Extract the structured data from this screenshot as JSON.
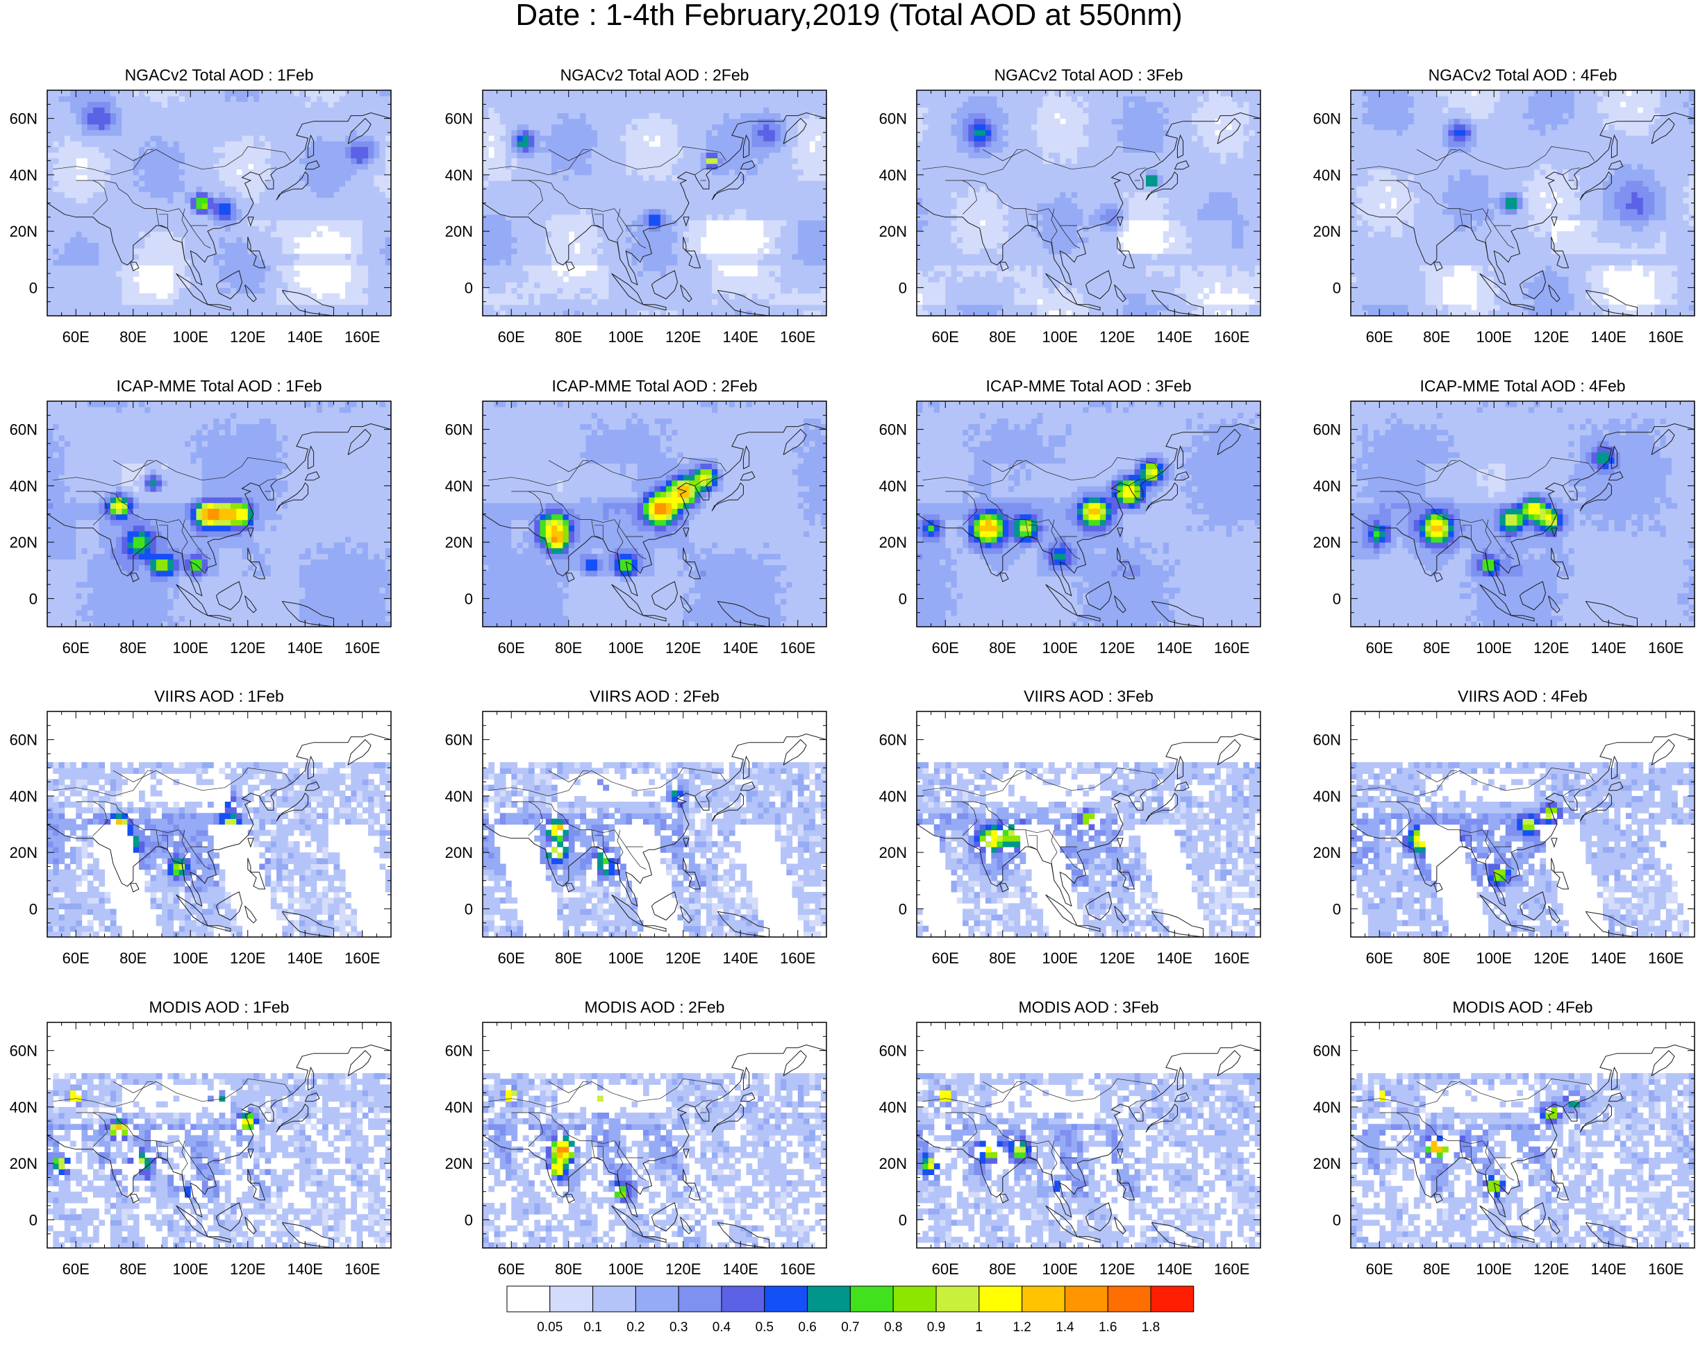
{
  "title": "Date : 1-4th February,2019 (Total AOD at 550nm)",
  "chart_data": {
    "type": "heatmap",
    "grid": {
      "rows": 4,
      "cols": 4
    },
    "lon_range": [
      50,
      170
    ],
    "lat_range": [
      -10,
      70
    ],
    "x_ticks": [
      "60E",
      "80E",
      "100E",
      "120E",
      "140E",
      "160E"
    ],
    "x_tick_values": [
      60,
      80,
      100,
      120,
      140,
      160
    ],
    "y_ticks": [
      "60N",
      "40N",
      "20N",
      "0"
    ],
    "y_tick_values": [
      60,
      40,
      20,
      0
    ],
    "panels": [
      {
        "title": "NGACv2 Total AOD : 1Feb",
        "source": "ngac",
        "day": 1
      },
      {
        "title": "NGACv2 Total AOD : 2Feb",
        "source": "ngac",
        "day": 2
      },
      {
        "title": "NGACv2 Total AOD : 3Feb",
        "source": "ngac",
        "day": 3
      },
      {
        "title": "NGACv2 Total AOD : 4Feb",
        "source": "ngac",
        "day": 4
      },
      {
        "title": "ICAP-MME Total AOD : 1Feb",
        "source": "icap",
        "day": 1
      },
      {
        "title": "ICAP-MME Total AOD : 2Feb",
        "source": "icap",
        "day": 2
      },
      {
        "title": "ICAP-MME Total AOD : 3Feb",
        "source": "icap",
        "day": 3
      },
      {
        "title": "ICAP-MME Total AOD : 4Feb",
        "source": "icap",
        "day": 4
      },
      {
        "title": "VIIRS AOD : 1Feb",
        "source": "viirs",
        "day": 1
      },
      {
        "title": "VIIRS AOD : 2Feb",
        "source": "viirs",
        "day": 2
      },
      {
        "title": "VIIRS AOD : 3Feb",
        "source": "viirs",
        "day": 3
      },
      {
        "title": "VIIRS AOD : 4Feb",
        "source": "viirs",
        "day": 4
      },
      {
        "title": "MODIS AOD : 1Feb",
        "source": "modis",
        "day": 1
      },
      {
        "title": "MODIS AOD : 2Feb",
        "source": "modis",
        "day": 2
      },
      {
        "title": "MODIS AOD : 3Feb",
        "source": "modis",
        "day": 3
      },
      {
        "title": "MODIS AOD : 4Feb",
        "source": "modis",
        "day": 4
      }
    ],
    "colorbar": {
      "levels": [
        "0.05",
        "0.1",
        "0.2",
        "0.3",
        "0.4",
        "0.5",
        "0.6",
        "0.7",
        "0.8",
        "0.9",
        "1",
        "1.2",
        "1.4",
        "1.6",
        "1.8"
      ],
      "colors": [
        "#ffffff",
        "#d4dcfb",
        "#b5c4f8",
        "#96abf5",
        "#7e90f0",
        "#5b62e6",
        "#1450f5",
        "#00968c",
        "#41e11e",
        "#8ce600",
        "#c8f03c",
        "#ffff00",
        "#ffc300",
        "#ff9600",
        "#ff6e00",
        "#ff1e00"
      ]
    },
    "hotspots": {
      "ngac": [
        [
          [
            104,
            30,
            3,
            0.8
          ],
          [
            112,
            28,
            4,
            0.5
          ],
          [
            68,
            60,
            6,
            0.35
          ],
          [
            160,
            48,
            5,
            0.35
          ]
        ],
        [
          [
            64,
            52,
            4,
            0.55
          ],
          [
            130,
            45,
            2,
            0.9
          ],
          [
            110,
            24,
            3,
            0.4
          ],
          [
            150,
            55,
            6,
            0.3
          ]
        ],
        [
          [
            72,
            55,
            5,
            0.4
          ],
          [
            132,
            38,
            2,
            0.9
          ],
          [
            118,
            25,
            5,
            0.25
          ]
        ],
        [
          [
            88,
            55,
            5,
            0.45
          ],
          [
            106,
            30,
            3,
            0.6
          ],
          [
            150,
            30,
            8,
            0.2
          ]
        ]
      ],
      "icap": [
        [
          [
            75,
            33,
            4,
            0.9
          ],
          [
            87,
            41,
            3,
            0.6
          ],
          [
            106,
            30,
            4,
            1.2
          ],
          [
            112,
            30,
            4,
            0.9
          ],
          [
            118,
            30,
            4,
            0.8
          ],
          [
            82,
            20,
            5,
            0.5
          ],
          [
            90,
            12,
            4,
            0.7
          ],
          [
            102,
            12,
            3,
            0.6
          ]
        ],
        [
          [
            75,
            25,
            5,
            1.0
          ],
          [
            76,
            20,
            3,
            0.8
          ],
          [
            112,
            32,
            5,
            1.3
          ],
          [
            120,
            38,
            5,
            1.1
          ],
          [
            128,
            43,
            4,
            0.9
          ],
          [
            100,
            12,
            4,
            0.6
          ],
          [
            88,
            12,
            3,
            0.5
          ]
        ],
        [
          [
            75,
            25,
            5,
            1.1
          ],
          [
            88,
            25,
            4,
            0.7
          ],
          [
            112,
            31,
            5,
            1.0
          ],
          [
            124,
            38,
            5,
            1.0
          ],
          [
            132,
            45,
            4,
            0.9
          ],
          [
            55,
            25,
            3,
            0.5
          ],
          [
            100,
            15,
            4,
            0.4
          ]
        ],
        [
          [
            80,
            25,
            5,
            1.0
          ],
          [
            60,
            23,
            4,
            0.5
          ],
          [
            106,
            28,
            4,
            0.8
          ],
          [
            114,
            32,
            4,
            0.9
          ],
          [
            120,
            28,
            4,
            0.8
          ],
          [
            138,
            50,
            4,
            0.5
          ],
          [
            98,
            12,
            3,
            0.6
          ]
        ]
      ],
      "viirs": [
        [
          [
            75,
            30,
            3,
            1.2
          ],
          [
            78,
            23,
            4,
            0.7
          ],
          [
            96,
            15,
            3,
            0.7
          ],
          [
            114,
            30,
            3,
            0.8
          ],
          [
            112,
            38,
            4,
            0.5
          ]
        ],
        [
          [
            76,
            28,
            3,
            1.1
          ],
          [
            76,
            20,
            3,
            0.9
          ],
          [
            92,
            16,
            4,
            0.6
          ],
          [
            90,
            42,
            3,
            0.7
          ],
          [
            118,
            40,
            3,
            0.6
          ]
        ],
        [
          [
            76,
            25,
            4,
            0.9
          ],
          [
            84,
            26,
            4,
            0.7
          ],
          [
            110,
            32,
            3,
            0.7
          ],
          [
            100,
            12,
            3,
            0.5
          ]
        ],
        [
          [
            75,
            25,
            4,
            1.0
          ],
          [
            85,
            25,
            3,
            0.8
          ],
          [
            112,
            30,
            3,
            0.8
          ],
          [
            120,
            34,
            3,
            0.8
          ],
          [
            102,
            12,
            3,
            0.6
          ]
        ]
      ],
      "modis": [
        [
          [
            75,
            32,
            3,
            1.3
          ],
          [
            82,
            20,
            4,
            0.7
          ],
          [
            55,
            20,
            3,
            0.8
          ],
          [
            100,
            10,
            3,
            0.6
          ],
          [
            120,
            35,
            3,
            1.0
          ],
          [
            60,
            44,
            2,
            1.5
          ],
          [
            110,
            42,
            3,
            0.6
          ]
        ],
        [
          [
            78,
            25,
            4,
            1.2
          ],
          [
            76,
            18,
            3,
            0.9
          ],
          [
            92,
            42,
            4,
            0.9
          ],
          [
            60,
            44,
            2,
            1.5
          ],
          [
            98,
            10,
            3,
            0.6
          ]
        ],
        [
          [
            76,
            25,
            4,
            1.0
          ],
          [
            86,
            25,
            3,
            0.8
          ],
          [
            55,
            20,
            3,
            0.8
          ],
          [
            60,
            44,
            2,
            1.5
          ],
          [
            100,
            12,
            3,
            0.5
          ]
        ],
        [
          [
            80,
            26,
            3,
            1.3
          ],
          [
            86,
            26,
            3,
            0.9
          ],
          [
            120,
            38,
            3,
            0.9
          ],
          [
            128,
            42,
            3,
            0.6
          ],
          [
            60,
            44,
            2,
            1.5
          ],
          [
            100,
            12,
            3,
            0.7
          ]
        ]
      ]
    }
  }
}
